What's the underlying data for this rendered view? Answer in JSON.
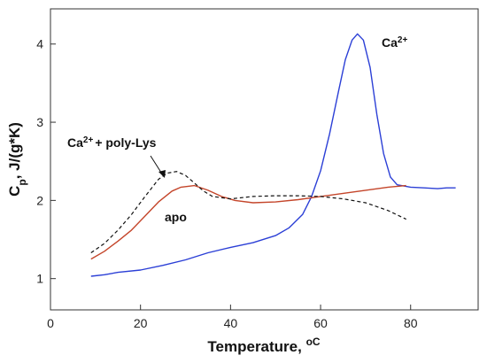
{
  "chart_data": {
    "type": "line",
    "title": "",
    "xlabel": "Temperature, ",
    "xlabel_unit": "oC",
    "ylabel_main": "C",
    "ylabel_sub": "p",
    "ylabel_rest": ", J/(g*K)",
    "xlim": [
      0,
      95
    ],
    "ylim": [
      0.6,
      4.45
    ],
    "x_ticks": [
      0,
      20,
      40,
      60,
      80
    ],
    "y_ticks": [
      1,
      2,
      3,
      4
    ],
    "grid": false,
    "legend": "none",
    "series": [
      {
        "name": "Ca2+",
        "color": "#2b3fd6",
        "dash": "solid",
        "points": [
          [
            9,
            1.03
          ],
          [
            12,
            1.05
          ],
          [
            15,
            1.08
          ],
          [
            20,
            1.11
          ],
          [
            25,
            1.17
          ],
          [
            30,
            1.24
          ],
          [
            35,
            1.33
          ],
          [
            40,
            1.4
          ],
          [
            45,
            1.46
          ],
          [
            50,
            1.55
          ],
          [
            53,
            1.65
          ],
          [
            56,
            1.82
          ],
          [
            58,
            2.05
          ],
          [
            60,
            2.38
          ],
          [
            62,
            2.85
          ],
          [
            64,
            3.4
          ],
          [
            65.5,
            3.8
          ],
          [
            67,
            4.05
          ],
          [
            68.2,
            4.13
          ],
          [
            69.5,
            4.05
          ],
          [
            71,
            3.7
          ],
          [
            72.5,
            3.1
          ],
          [
            74,
            2.6
          ],
          [
            75.5,
            2.3
          ],
          [
            77,
            2.2
          ],
          [
            80,
            2.17
          ],
          [
            83,
            2.16
          ],
          [
            86,
            2.15
          ],
          [
            88,
            2.16
          ],
          [
            90,
            2.16
          ]
        ]
      },
      {
        "name": "apo",
        "color": "#c4452a",
        "dash": "solid",
        "points": [
          [
            9,
            1.25
          ],
          [
            12,
            1.35
          ],
          [
            15,
            1.48
          ],
          [
            18,
            1.62
          ],
          [
            21,
            1.8
          ],
          [
            24,
            1.98
          ],
          [
            27,
            2.12
          ],
          [
            29,
            2.17
          ],
          [
            32,
            2.19
          ],
          [
            35,
            2.13
          ],
          [
            38,
            2.05
          ],
          [
            41,
            2.0
          ],
          [
            45,
            1.97
          ],
          [
            50,
            1.98
          ],
          [
            55,
            2.01
          ],
          [
            60,
            2.05
          ],
          [
            65,
            2.09
          ],
          [
            70,
            2.13
          ],
          [
            75,
            2.17
          ],
          [
            79,
            2.19
          ]
        ]
      },
      {
        "name": "Ca2+ + poly-Lys",
        "color": "#111111",
        "dash": "dashed",
        "points": [
          [
            9,
            1.33
          ],
          [
            12,
            1.45
          ],
          [
            15,
            1.62
          ],
          [
            18,
            1.82
          ],
          [
            21,
            2.05
          ],
          [
            24,
            2.27
          ],
          [
            26,
            2.35
          ],
          [
            28,
            2.37
          ],
          [
            30,
            2.32
          ],
          [
            32,
            2.22
          ],
          [
            34,
            2.12
          ],
          [
            36,
            2.05
          ],
          [
            40,
            2.02
          ],
          [
            45,
            2.05
          ],
          [
            50,
            2.06
          ],
          [
            55,
            2.06
          ],
          [
            60,
            2.05
          ],
          [
            65,
            2.02
          ],
          [
            70,
            1.97
          ],
          [
            75,
            1.87
          ],
          [
            79,
            1.76
          ]
        ]
      }
    ],
    "annotations": {
      "ca_main": "Ca",
      "ca_sup": "2+",
      "apo": "apo",
      "polylys_main": "Ca",
      "polylys_sup": "2+",
      "polylys_rest": "+ poly-Lys"
    }
  }
}
